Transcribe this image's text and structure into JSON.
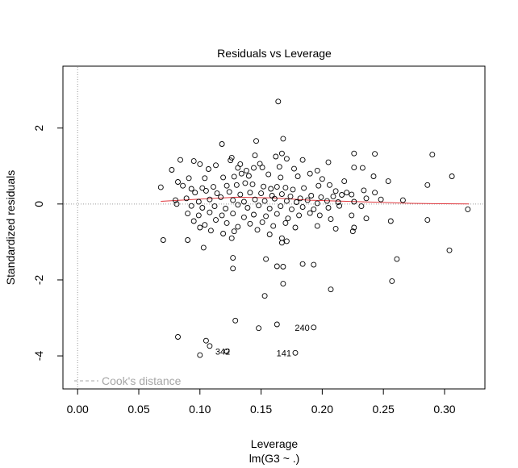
{
  "chart_data": {
    "type": "scatter",
    "title": "Residuals vs Leverage",
    "xlabel": "Leverage",
    "sublabel": "lm(G3 ~ .)",
    "ylabel": "Standardized residuals",
    "xlim": [
      -0.012,
      0.333
    ],
    "ylim": [
      -4.87,
      3.63
    ],
    "xticks": [
      "0.00",
      "0.05",
      "0.10",
      "0.15",
      "0.20",
      "0.25",
      "0.30"
    ],
    "xtick_values": [
      0.0,
      0.05,
      0.1,
      0.15,
      0.2,
      0.25,
      0.3
    ],
    "yticks": [
      "-4",
      "-2",
      "0",
      "2"
    ],
    "ytick_values": [
      -4,
      -2,
      0,
      2
    ],
    "legend": {
      "label": "Cook's distance",
      "position": "bottom-left"
    },
    "reference_lines": {
      "vertical_x": 0.0,
      "horizontal_y": 0.0
    },
    "annotations": [
      {
        "label": "240",
        "x": 0.193,
        "y": -3.25
      },
      {
        "label": "342",
        "x": 0.128,
        "y": -3.88
      },
      {
        "label": "141",
        "x": 0.178,
        "y": -3.92
      }
    ],
    "smoother": {
      "x": [
        0.068,
        0.1,
        0.13,
        0.16,
        0.19,
        0.22,
        0.25,
        0.27,
        0.29,
        0.32
      ],
      "y": [
        0.07,
        0.13,
        0.18,
        0.16,
        0.1,
        0.07,
        0.04,
        0.02,
        0.01,
        0.0
      ]
    },
    "points": [
      [
        0.164,
        2.7
      ],
      [
        0.168,
        1.72
      ],
      [
        0.146,
        1.66
      ],
      [
        0.118,
        1.58
      ],
      [
        0.29,
        1.3
      ],
      [
        0.243,
        1.32
      ],
      [
        0.226,
        1.33
      ],
      [
        0.167,
        1.33
      ],
      [
        0.145,
        1.28
      ],
      [
        0.162,
        1.25
      ],
      [
        0.126,
        1.22
      ],
      [
        0.125,
        1.15
      ],
      [
        0.084,
        1.16
      ],
      [
        0.095,
        1.13
      ],
      [
        0.171,
        1.19
      ],
      [
        0.184,
        1.16
      ],
      [
        0.205,
        1.1
      ],
      [
        0.149,
        1.06
      ],
      [
        0.133,
        1.05
      ],
      [
        0.1,
        1.05
      ],
      [
        0.113,
        1.02
      ],
      [
        0.077,
        0.9
      ],
      [
        0.107,
        0.92
      ],
      [
        0.131,
        0.95
      ],
      [
        0.138,
        0.88
      ],
      [
        0.144,
        0.95
      ],
      [
        0.151,
        0.96
      ],
      [
        0.165,
        0.98
      ],
      [
        0.177,
        0.93
      ],
      [
        0.196,
        0.88
      ],
      [
        0.226,
        0.96
      ],
      [
        0.233,
        0.95
      ],
      [
        0.242,
        0.73
      ],
      [
        0.306,
        0.73
      ],
      [
        0.082,
        0.58
      ],
      [
        0.091,
        0.68
      ],
      [
        0.104,
        0.68
      ],
      [
        0.119,
        0.7
      ],
      [
        0.128,
        0.72
      ],
      [
        0.134,
        0.8
      ],
      [
        0.14,
        0.74
      ],
      [
        0.156,
        0.78
      ],
      [
        0.166,
        0.7
      ],
      [
        0.18,
        0.73
      ],
      [
        0.19,
        0.8
      ],
      [
        0.2,
        0.66
      ],
      [
        0.218,
        0.6
      ],
      [
        0.254,
        0.6
      ],
      [
        0.286,
        0.5
      ],
      [
        0.068,
        0.44
      ],
      [
        0.086,
        0.48
      ],
      [
        0.093,
        0.4
      ],
      [
        0.102,
        0.42
      ],
      [
        0.111,
        0.45
      ],
      [
        0.122,
        0.48
      ],
      [
        0.13,
        0.5
      ],
      [
        0.137,
        0.55
      ],
      [
        0.143,
        0.52
      ],
      [
        0.152,
        0.46
      ],
      [
        0.158,
        0.4
      ],
      [
        0.163,
        0.45
      ],
      [
        0.17,
        0.43
      ],
      [
        0.176,
        0.38
      ],
      [
        0.185,
        0.42
      ],
      [
        0.197,
        0.48
      ],
      [
        0.206,
        0.5
      ],
      [
        0.211,
        0.34
      ],
      [
        0.22,
        0.3
      ],
      [
        0.234,
        0.36
      ],
      [
        0.243,
        0.3
      ],
      [
        0.096,
        0.3
      ],
      [
        0.105,
        0.35
      ],
      [
        0.114,
        0.28
      ],
      [
        0.124,
        0.32
      ],
      [
        0.133,
        0.25
      ],
      [
        0.141,
        0.3
      ],
      [
        0.15,
        0.28
      ],
      [
        0.159,
        0.22
      ],
      [
        0.167,
        0.26
      ],
      [
        0.174,
        0.2
      ],
      [
        0.182,
        0.15
      ],
      [
        0.191,
        0.22
      ],
      [
        0.199,
        0.18
      ],
      [
        0.209,
        0.2
      ],
      [
        0.216,
        0.24
      ],
      [
        0.224,
        0.25
      ],
      [
        0.236,
        0.15
      ],
      [
        0.08,
        0.1
      ],
      [
        0.089,
        0.15
      ],
      [
        0.099,
        0.06
      ],
      [
        0.108,
        0.12
      ],
      [
        0.117,
        0.18
      ],
      [
        0.127,
        0.1
      ],
      [
        0.136,
        0.06
      ],
      [
        0.145,
        0.12
      ],
      [
        0.153,
        0.08
      ],
      [
        0.161,
        0.14
      ],
      [
        0.171,
        0.08
      ],
      [
        0.179,
        0.05
      ],
      [
        0.188,
        0.1
      ],
      [
        0.196,
        0.02
      ],
      [
        0.204,
        0.08
      ],
      [
        0.213,
        0.05
      ],
      [
        0.226,
        0.06
      ],
      [
        0.248,
        0.12
      ],
      [
        0.266,
        0.1
      ],
      [
        0.081,
        0.0
      ],
      [
        0.093,
        -0.05
      ],
      [
        0.102,
        -0.1
      ],
      [
        0.112,
        -0.06
      ],
      [
        0.121,
        -0.12
      ],
      [
        0.131,
        -0.02
      ],
      [
        0.139,
        -0.1
      ],
      [
        0.148,
        -0.04
      ],
      [
        0.157,
        -0.12
      ],
      [
        0.166,
        -0.06
      ],
      [
        0.175,
        -0.14
      ],
      [
        0.184,
        -0.08
      ],
      [
        0.193,
        -0.14
      ],
      [
        0.205,
        -0.1
      ],
      [
        0.214,
        -0.05
      ],
      [
        0.232,
        -0.06
      ],
      [
        0.319,
        -0.14
      ],
      [
        0.09,
        -0.25
      ],
      [
        0.099,
        -0.3
      ],
      [
        0.108,
        -0.22
      ],
      [
        0.118,
        -0.3
      ],
      [
        0.127,
        -0.25
      ],
      [
        0.136,
        -0.35
      ],
      [
        0.144,
        -0.28
      ],
      [
        0.154,
        -0.32
      ],
      [
        0.163,
        -0.26
      ],
      [
        0.172,
        -0.38
      ],
      [
        0.181,
        -0.3
      ],
      [
        0.19,
        -0.24
      ],
      [
        0.198,
        -0.3
      ],
      [
        0.207,
        -0.4
      ],
      [
        0.224,
        -0.3
      ],
      [
        0.236,
        -0.38
      ],
      [
        0.256,
        -0.45
      ],
      [
        0.286,
        -0.42
      ],
      [
        0.095,
        -0.45
      ],
      [
        0.104,
        -0.55
      ],
      [
        0.113,
        -0.42
      ],
      [
        0.122,
        -0.5
      ],
      [
        0.131,
        -0.6
      ],
      [
        0.141,
        -0.52
      ],
      [
        0.151,
        -0.48
      ],
      [
        0.16,
        -0.58
      ],
      [
        0.17,
        -0.5
      ],
      [
        0.178,
        -0.62
      ],
      [
        0.196,
        -0.58
      ],
      [
        0.211,
        -0.65
      ],
      [
        0.226,
        -0.62
      ],
      [
        0.1,
        -0.62
      ],
      [
        0.109,
        -0.7
      ],
      [
        0.119,
        -0.78
      ],
      [
        0.128,
        -0.72
      ],
      [
        0.147,
        -0.68
      ],
      [
        0.157,
        -0.8
      ],
      [
        0.167,
        -0.9
      ],
      [
        0.225,
        -0.72
      ],
      [
        0.07,
        -0.95
      ],
      [
        0.09,
        -0.95
      ],
      [
        0.126,
        -0.9
      ],
      [
        0.167,
        -1.02
      ],
      [
        0.171,
        -0.98
      ],
      [
        0.103,
        -1.15
      ],
      [
        0.304,
        -1.22
      ],
      [
        0.127,
        -1.42
      ],
      [
        0.154,
        -1.45
      ],
      [
        0.261,
        -1.45
      ],
      [
        0.184,
        -1.58
      ],
      [
        0.163,
        -1.64
      ],
      [
        0.193,
        -1.6
      ],
      [
        0.168,
        -1.65
      ],
      [
        0.127,
        -1.7
      ],
      [
        0.257,
        -2.03
      ],
      [
        0.168,
        -2.1
      ],
      [
        0.207,
        -2.25
      ],
      [
        0.153,
        -2.42
      ],
      [
        0.193,
        -3.25
      ],
      [
        0.082,
        -3.5
      ],
      [
        0.129,
        -3.07
      ],
      [
        0.148,
        -3.27
      ],
      [
        0.163,
        -3.17
      ],
      [
        0.105,
        -3.6
      ],
      [
        0.108,
        -3.74
      ],
      [
        0.1,
        -3.98
      ],
      [
        0.122,
        -3.88
      ],
      [
        0.178,
        -3.92
      ]
    ]
  }
}
